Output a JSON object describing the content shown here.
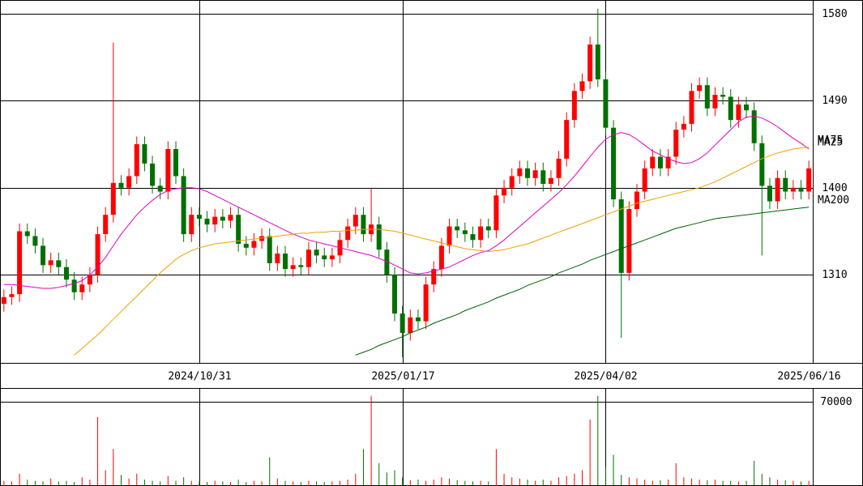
{
  "chart_data": {
    "type": "candlestick",
    "categories": [
      null,
      null,
      null,
      null,
      null,
      null,
      null,
      null,
      null,
      null,
      null,
      null,
      null,
      null,
      null,
      null,
      null,
      null,
      null,
      null,
      null,
      null,
      null,
      null,
      null,
      "2024/10/31",
      null,
      null,
      null,
      null,
      null,
      null,
      null,
      null,
      null,
      null,
      null,
      null,
      null,
      null,
      null,
      null,
      null,
      null,
      null,
      null,
      null,
      null,
      null,
      null,
      null,
      "2025/01/17",
      null,
      null,
      null,
      null,
      null,
      null,
      null,
      null,
      null,
      null,
      null,
      null,
      null,
      null,
      null,
      null,
      null,
      null,
      null,
      null,
      null,
      null,
      null,
      null,
      null,
      "2025/04/02",
      null,
      null,
      null,
      null,
      null,
      null,
      null,
      null,
      null,
      null,
      null,
      null,
      null,
      null,
      null,
      null,
      null,
      null,
      null,
      null,
      null,
      null,
      null,
      null,
      null,
      "2025/06/16"
    ],
    "open": [
      1280,
      1287,
      1290,
      1355,
      1350,
      1340,
      1320,
      1325,
      1318,
      1305,
      1292,
      1300,
      1310,
      1352,
      1372,
      1405,
      1400,
      1412,
      1445,
      1425,
      1402,
      1396,
      1440,
      1412,
      1352,
      1372,
      1368,
      1362,
      1370,
      1366,
      1372,
      1342,
      1338,
      1345,
      1350,
      1322,
      1332,
      1316,
      1320,
      1318,
      1336,
      1330,
      1326,
      1330,
      1346,
      1360,
      1372,
      1352,
      1362,
      1336,
      1310,
      1270,
      1250,
      1266,
      1262,
      1300,
      1316,
      1340,
      1360,
      1356,
      1352,
      1346,
      1360,
      1356,
      1392,
      1400,
      1412,
      1420,
      1410,
      1418,
      1404,
      1410,
      1430,
      1470,
      1500,
      1510,
      1548,
      1512,
      1462,
      1388,
      1312,
      1378,
      1396,
      1420,
      1432,
      1420,
      1432,
      1460,
      1466,
      1500,
      1506,
      1482,
      1496,
      1494,
      1470,
      1486,
      1480,
      1446,
      1402,
      1386,
      1410,
      1396,
      1400,
      1396
    ],
    "high": [
      1295,
      1298,
      1363,
      1363,
      1358,
      1348,
      1333,
      1333,
      1326,
      1313,
      1308,
      1318,
      1360,
      1380,
      1550,
      1413,
      1420,
      1453,
      1453,
      1433,
      1410,
      1448,
      1448,
      1420,
      1380,
      1380,
      1376,
      1378,
      1378,
      1380,
      1380,
      1350,
      1353,
      1358,
      1358,
      1340,
      1340,
      1328,
      1328,
      1344,
      1344,
      1338,
      1338,
      1354,
      1368,
      1380,
      1380,
      1400,
      1370,
      1344,
      1318,
      1278,
      1274,
      1274,
      1308,
      1324,
      1348,
      1368,
      1368,
      1364,
      1360,
      1368,
      1368,
      1400,
      1408,
      1420,
      1428,
      1428,
      1426,
      1426,
      1418,
      1438,
      1478,
      1508,
      1518,
      1556,
      1585,
      1520,
      1470,
      1396,
      1386,
      1404,
      1428,
      1440,
      1440,
      1440,
      1468,
      1474,
      1508,
      1514,
      1514,
      1504,
      1504,
      1502,
      1494,
      1494,
      1488,
      1454,
      1410,
      1418,
      1418,
      1408,
      1408,
      1428
    ],
    "low": [
      1272,
      1279,
      1282,
      1342,
      1332,
      1312,
      1312,
      1310,
      1297,
      1284,
      1284,
      1292,
      1302,
      1344,
      1364,
      1392,
      1392,
      1404,
      1417,
      1394,
      1388,
      1388,
      1404,
      1344,
      1344,
      1360,
      1354,
      1354,
      1358,
      1358,
      1334,
      1330,
      1330,
      1337,
      1314,
      1314,
      1308,
      1308,
      1310,
      1310,
      1322,
      1318,
      1318,
      1322,
      1338,
      1352,
      1344,
      1344,
      1328,
      1302,
      1262,
      1225,
      1242,
      1254,
      1254,
      1292,
      1308,
      1332,
      1348,
      1344,
      1338,
      1338,
      1348,
      1348,
      1384,
      1392,
      1404,
      1402,
      1402,
      1396,
      1396,
      1402,
      1422,
      1462,
      1492,
      1502,
      1504,
      1454,
      1380,
      1245,
      1304,
      1370,
      1388,
      1412,
      1412,
      1412,
      1424,
      1452,
      1458,
      1492,
      1474,
      1474,
      1486,
      1462,
      1462,
      1472,
      1438,
      1330,
      1378,
      1378,
      1388,
      1388,
      1388,
      1388
    ],
    "close": [
      1287,
      1290,
      1355,
      1350,
      1340,
      1320,
      1325,
      1318,
      1305,
      1292,
      1300,
      1310,
      1352,
      1372,
      1405,
      1400,
      1412,
      1445,
      1425,
      1402,
      1396,
      1440,
      1412,
      1352,
      1372,
      1368,
      1362,
      1370,
      1366,
      1372,
      1342,
      1338,
      1345,
      1350,
      1322,
      1332,
      1316,
      1320,
      1318,
      1336,
      1330,
      1326,
      1330,
      1346,
      1360,
      1372,
      1352,
      1362,
      1336,
      1310,
      1270,
      1250,
      1266,
      1262,
      1300,
      1316,
      1340,
      1360,
      1356,
      1352,
      1346,
      1360,
      1356,
      1392,
      1400,
      1412,
      1420,
      1410,
      1418,
      1404,
      1410,
      1430,
      1470,
      1500,
      1510,
      1548,
      1512,
      1462,
      1388,
      1312,
      1378,
      1396,
      1420,
      1432,
      1420,
      1432,
      1460,
      1466,
      1500,
      1506,
      1482,
      1496,
      1494,
      1470,
      1486,
      1480,
      1446,
      1402,
      1386,
      1410,
      1396,
      1400,
      1396,
      1420
    ],
    "up_color": "#ff0000",
    "down_color": "#007000",
    "ylim": [
      1219,
      1594
    ],
    "yticks": [
      1310,
      1400,
      1490,
      1580
    ],
    "grid": true,
    "series": [
      {
        "name": "MA25",
        "color": "#e000c0",
        "values": [
          1300,
          1300,
          1299,
          1298,
          1297,
          1296,
          1296,
          1297,
          1299,
          1301,
          1304,
          1310,
          1318,
          1328,
          1340,
          1352,
          1362,
          1372,
          1380,
          1387,
          1393,
          1397,
          1399,
          1400,
          1400,
          1399,
          1396,
          1392,
          1388,
          1384,
          1380,
          1376,
          1372,
          1368,
          1364,
          1360,
          1356,
          1352,
          1349,
          1346,
          1344,
          1342,
          1340,
          1338,
          1336,
          1334,
          1332,
          1330,
          1327,
          1324,
          1320,
          1316,
          1312,
          1311,
          1312,
          1314,
          1316,
          1318,
          1322,
          1326,
          1330,
          1333,
          1335,
          1340,
          1346,
          1353,
          1360,
          1367,
          1374,
          1381,
          1388,
          1395,
          1403,
          1412,
          1422,
          1432,
          1442,
          1450,
          1455,
          1457,
          1455,
          1450,
          1444,
          1438,
          1434,
          1430,
          1427,
          1425,
          1426,
          1430,
          1436,
          1444,
          1452,
          1460,
          1468,
          1473,
          1474,
          1472,
          1468,
          1463,
          1457,
          1451,
          1446,
          1440
        ]
      },
      {
        "name": "MA75",
        "color": "#f0a000",
        "values": [
          null,
          null,
          null,
          null,
          null,
          null,
          null,
          null,
          null,
          1227,
          1234,
          1241,
          1248,
          1256,
          1264,
          1272,
          1280,
          1288,
          1296,
          1304,
          1312,
          1319,
          1326,
          1331,
          1335,
          1338,
          1340,
          1342,
          1343,
          1344,
          1345,
          1346,
          1347,
          1348,
          1349,
          1350,
          1351,
          1352,
          1353,
          1353,
          1354,
          1354,
          1355,
          1355,
          1356,
          1356,
          1357,
          1357,
          1357,
          1356,
          1355,
          1353,
          1351,
          1349,
          1347,
          1345,
          1343,
          1341,
          1339,
          1337,
          1336,
          1335,
          1334,
          1335,
          1336,
          1338,
          1340,
          1342,
          1345,
          1348,
          1351,
          1354,
          1357,
          1360,
          1363,
          1366,
          1369,
          1372,
          1375,
          1378,
          1381,
          1384,
          1386,
          1388,
          1390,
          1392,
          1394,
          1396,
          1398,
          1400,
          1403,
          1406,
          1410,
          1414,
          1418,
          1422,
          1426,
          1430,
          1433,
          1436,
          1438,
          1440,
          1441,
          1442
        ]
      },
      {
        "name": "MA200",
        "color": "#006000",
        "values": [
          null,
          null,
          null,
          null,
          null,
          null,
          null,
          null,
          null,
          null,
          null,
          null,
          null,
          null,
          null,
          null,
          null,
          null,
          null,
          null,
          null,
          null,
          null,
          null,
          null,
          null,
          null,
          null,
          null,
          null,
          null,
          null,
          null,
          null,
          null,
          null,
          null,
          null,
          null,
          null,
          null,
          null,
          null,
          null,
          null,
          1227,
          1230,
          1233,
          1237,
          1240,
          1243,
          1246,
          1250,
          1253,
          1256,
          1260,
          1263,
          1266,
          1269,
          1273,
          1276,
          1279,
          1282,
          1286,
          1289,
          1292,
          1295,
          1299,
          1302,
          1305,
          1308,
          1312,
          1315,
          1318,
          1321,
          1325,
          1328,
          1331,
          1334,
          1337,
          1340,
          1343,
          1346,
          1349,
          1352,
          1355,
          1358,
          1360,
          1362,
          1364,
          1366,
          1368,
          1369,
          1370,
          1371,
          1372,
          1373,
          1374,
          1375,
          1376,
          1377,
          1378,
          1379,
          1380
        ]
      }
    ],
    "volume": {
      "values": [
        3000,
        2500,
        9000,
        4000,
        3000,
        2500,
        5000,
        2500,
        3000,
        2000,
        6000,
        4000,
        57000,
        12000,
        30000,
        8000,
        5000,
        9000,
        4000,
        3000,
        2500,
        7000,
        3000,
        6000,
        3000,
        2500,
        2000,
        3000,
        2500,
        2000,
        4000,
        2000,
        3000,
        2500,
        23000,
        5000,
        3000,
        2500,
        2000,
        3000,
        2500,
        2000,
        2500,
        3000,
        4000,
        9000,
        30000,
        75000,
        18000,
        10000,
        12000,
        6000,
        3500,
        4000,
        3000,
        4000,
        6000,
        5000,
        3500,
        3000,
        2500,
        3000,
        2500,
        30000,
        9000,
        6000,
        5000,
        4000,
        3000,
        4000,
        3000,
        6000,
        7000,
        9000,
        12000,
        55000,
        75000,
        15000,
        25000,
        8000,
        6000,
        5000,
        4000,
        3000,
        3500,
        4000,
        18000,
        6000,
        5000,
        4000,
        3500,
        4000,
        3000,
        3000,
        2500,
        3000,
        20000,
        9000,
        6000,
        4000,
        3500,
        3000,
        2500,
        3000
      ],
      "ylim": [
        0,
        81000
      ],
      "yticks": [
        70000
      ]
    }
  }
}
